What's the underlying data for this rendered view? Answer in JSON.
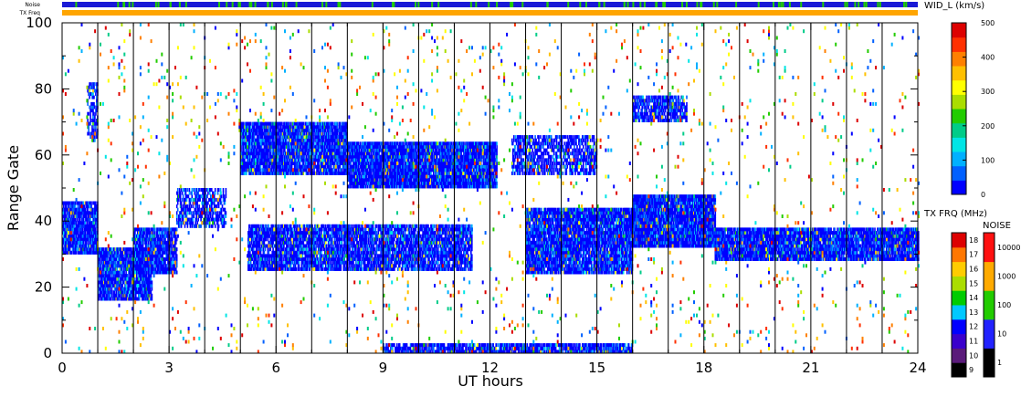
{
  "header": {
    "noise_label": "Noise",
    "freq_label": "TX Freq"
  },
  "chart_data": {
    "type": "heatmap",
    "xlabel": "UT hours",
    "ylabel": "Range Gate",
    "xlim": [
      0,
      24
    ],
    "ylim": [
      0,
      100
    ],
    "x_ticks": [
      0,
      3,
      6,
      9,
      12,
      15,
      18,
      21,
      24
    ],
    "y_ticks": [
      0,
      20,
      40,
      60,
      80,
      100
    ],
    "x_minor_step": 1,
    "y_minor_step": 10,
    "hour_dividers": [
      1,
      2,
      3,
      4,
      5,
      6,
      7,
      8,
      9,
      10,
      11,
      12,
      13,
      14,
      15,
      16,
      17,
      18,
      19,
      20,
      21,
      22,
      23
    ],
    "color_scale": {
      "title": "WID_L (km/s)",
      "min": 0,
      "max": 500,
      "ticks": [
        0,
        100,
        200,
        300,
        400,
        500
      ],
      "colors": [
        "#0000ff",
        "#0060ff",
        "#00b0ff",
        "#00e5e5",
        "#00cc88",
        "#22cc00",
        "#aadd00",
        "#ffff00",
        "#ffc000",
        "#ff8000",
        "#ff3000",
        "#dd0000"
      ]
    },
    "echo_bands": [
      {
        "t0": 0,
        "t1": 1,
        "g0": 30,
        "g1": 46,
        "density": 0.9
      },
      {
        "t0": 0.7,
        "t1": 1,
        "g0": 64,
        "g1": 82,
        "density": 0.5
      },
      {
        "t0": 1,
        "t1": 2.5,
        "g0": 16,
        "g1": 32,
        "density": 0.9
      },
      {
        "t0": 2,
        "t1": 3.2,
        "g0": 24,
        "g1": 38,
        "density": 0.85
      },
      {
        "t0": 3.2,
        "t1": 4.6,
        "g0": 38,
        "g1": 50,
        "density": 0.6
      },
      {
        "t0": 5,
        "t1": 8,
        "g0": 54,
        "g1": 70,
        "density": 0.9
      },
      {
        "t0": 8,
        "t1": 12.2,
        "g0": 50,
        "g1": 64,
        "density": 0.95
      },
      {
        "t0": 5.2,
        "t1": 11.5,
        "g0": 25,
        "g1": 39,
        "density": 0.8
      },
      {
        "t0": 12.6,
        "t1": 15,
        "g0": 54,
        "g1": 66,
        "density": 0.6
      },
      {
        "t0": 13,
        "t1": 16,
        "g0": 24,
        "g1": 44,
        "density": 0.9
      },
      {
        "t0": 16,
        "t1": 18.3,
        "g0": 32,
        "g1": 48,
        "density": 0.95
      },
      {
        "t0": 16,
        "t1": 17.5,
        "g0": 70,
        "g1": 78,
        "density": 0.7
      },
      {
        "t0": 18.3,
        "t1": 24,
        "g0": 28,
        "g1": 38,
        "density": 0.9
      },
      {
        "t0": 9,
        "t1": 16,
        "g0": 0,
        "g1": 3,
        "density": 0.8
      },
      {
        "t0": 0,
        "t1": 24,
        "g0": 0,
        "g1": 100,
        "density": 0.05
      }
    ],
    "tx_freq_scale": {
      "title": "TX FRQ (MHz)",
      "ticks": [
        9,
        10,
        11,
        12,
        13,
        14,
        15,
        16,
        17,
        18
      ],
      "colors": [
        "#000000",
        "#5a1a7a",
        "#3a00cc",
        "#0000ff",
        "#00c8ff",
        "#00cc00",
        "#aadd00",
        "#ffcc00",
        "#ff7700",
        "#dd0000"
      ]
    },
    "noise_scale": {
      "title": "NOISE",
      "ticks": [
        "1",
        "10",
        "100",
        "1000",
        "10000"
      ],
      "colors": [
        "#000000",
        "#2222ff",
        "#22cc00",
        "#ffaa00",
        "#ff1010"
      ]
    },
    "noise_bar_color": "#1a1ad6",
    "freq_bar_color": "#ffa500"
  }
}
